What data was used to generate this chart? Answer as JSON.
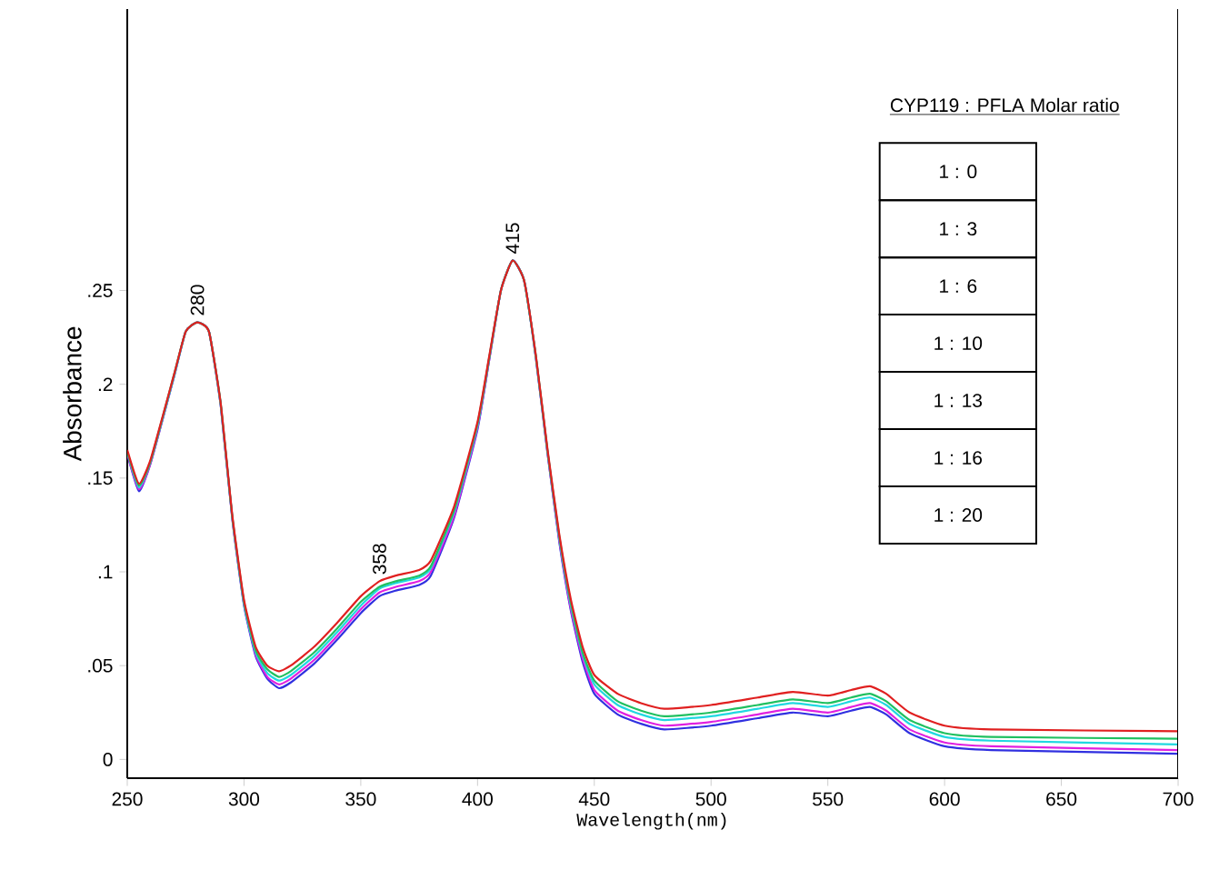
{
  "chart_data": {
    "type": "line",
    "xlabel": "Wavelength(nm)",
    "ylabel": "Absorbance",
    "x": [
      250,
      255,
      260,
      270,
      275,
      280,
      285,
      290,
      295,
      300,
      305,
      310,
      315,
      320,
      330,
      340,
      350,
      358,
      365,
      375,
      380,
      390,
      400,
      405,
      410,
      415,
      420,
      425,
      430,
      435,
      440,
      445,
      450,
      460,
      470,
      480,
      500,
      520,
      535,
      550,
      560,
      568,
      575,
      585,
      600,
      620,
      700
    ],
    "xlim": [
      250,
      700
    ],
    "ylim": [
      -0.01,
      0.4
    ],
    "xticks": [
      250,
      300,
      350,
      400,
      450,
      500,
      550,
      600,
      650,
      700
    ],
    "yticks": [
      0,
      {
        "value": 0.05,
        "label": ".05"
      },
      {
        "value": 0.1,
        "label": ".1"
      },
      {
        "value": 0.15,
        "label": ".15"
      },
      {
        "value": 0.2,
        "label": ".2"
      },
      {
        "value": 0.25,
        "label": ".25"
      }
    ],
    "grid": false,
    "marker": "none",
    "line_style": "solid",
    "series": [
      {
        "color": "#3030e0",
        "values": [
          0.163,
          0.143,
          0.158,
          0.204,
          0.228,
          0.233,
          0.228,
          0.189,
          0.128,
          0.082,
          0.055,
          0.043,
          0.038,
          0.041,
          0.051,
          0.064,
          0.078,
          0.087,
          0.09,
          0.093,
          0.098,
          0.129,
          0.176,
          0.213,
          0.25,
          0.266,
          0.255,
          0.214,
          0.163,
          0.116,
          0.079,
          0.052,
          0.035,
          0.024,
          0.019,
          0.016,
          0.018,
          0.022,
          0.025,
          0.023,
          0.026,
          0.028,
          0.024,
          0.014,
          0.007,
          0.005,
          0.003
        ]
      },
      {
        "color": "#e020e0",
        "values": [
          0.163,
          0.144,
          0.158,
          0.204,
          0.228,
          0.233,
          0.228,
          0.189,
          0.128,
          0.083,
          0.056,
          0.044,
          0.04,
          0.043,
          0.053,
          0.066,
          0.08,
          0.089,
          0.092,
          0.095,
          0.1,
          0.13,
          0.177,
          0.213,
          0.25,
          0.266,
          0.255,
          0.214,
          0.163,
          0.117,
          0.08,
          0.054,
          0.037,
          0.026,
          0.021,
          0.018,
          0.02,
          0.024,
          0.027,
          0.025,
          0.028,
          0.03,
          0.026,
          0.016,
          0.009,
          0.007,
          0.005
        ]
      },
      {
        "color": "#20d8e0",
        "values": [
          0.164,
          0.145,
          0.159,
          0.204,
          0.228,
          0.233,
          0.228,
          0.189,
          0.129,
          0.083,
          0.057,
          0.046,
          0.042,
          0.045,
          0.055,
          0.068,
          0.082,
          0.091,
          0.094,
          0.097,
          0.102,
          0.132,
          0.178,
          0.214,
          0.25,
          0.266,
          0.255,
          0.214,
          0.164,
          0.118,
          0.082,
          0.056,
          0.04,
          0.029,
          0.024,
          0.021,
          0.023,
          0.027,
          0.03,
          0.028,
          0.031,
          0.033,
          0.029,
          0.019,
          0.012,
          0.01,
          0.008
        ]
      },
      {
        "color": "#20c060",
        "values": [
          0.164,
          0.146,
          0.159,
          0.205,
          0.228,
          0.233,
          0.228,
          0.19,
          0.129,
          0.084,
          0.058,
          0.048,
          0.044,
          0.047,
          0.057,
          0.07,
          0.084,
          0.092,
          0.095,
          0.098,
          0.103,
          0.133,
          0.179,
          0.214,
          0.25,
          0.266,
          0.255,
          0.215,
          0.164,
          0.119,
          0.083,
          0.057,
          0.042,
          0.031,
          0.026,
          0.023,
          0.025,
          0.029,
          0.032,
          0.03,
          0.033,
          0.035,
          0.031,
          0.021,
          0.014,
          0.012,
          0.011
        ]
      },
      {
        "color": "#e02020",
        "values": [
          0.165,
          0.147,
          0.16,
          0.205,
          0.228,
          0.233,
          0.228,
          0.19,
          0.13,
          0.085,
          0.06,
          0.05,
          0.047,
          0.05,
          0.06,
          0.073,
          0.087,
          0.095,
          0.098,
          0.101,
          0.106,
          0.135,
          0.18,
          0.215,
          0.25,
          0.266,
          0.255,
          0.215,
          0.165,
          0.12,
          0.085,
          0.06,
          0.045,
          0.035,
          0.03,
          0.027,
          0.029,
          0.033,
          0.036,
          0.034,
          0.037,
          0.039,
          0.035,
          0.025,
          0.018,
          0.016,
          0.015
        ]
      }
    ],
    "annotations": [
      {
        "text": "280",
        "x": 280,
        "y": 0.233
      },
      {
        "text": "358",
        "x": 358,
        "y": 0.095
      },
      {
        "text": "415",
        "x": 415,
        "y": 0.266
      },
      "CYP119 : PFLA Molar ratio",
      "1 : 0",
      "1 : 3",
      "1 : 6",
      "1 : 10",
      "1 : 13",
      "1 : 16",
      "1 : 20"
    ]
  }
}
